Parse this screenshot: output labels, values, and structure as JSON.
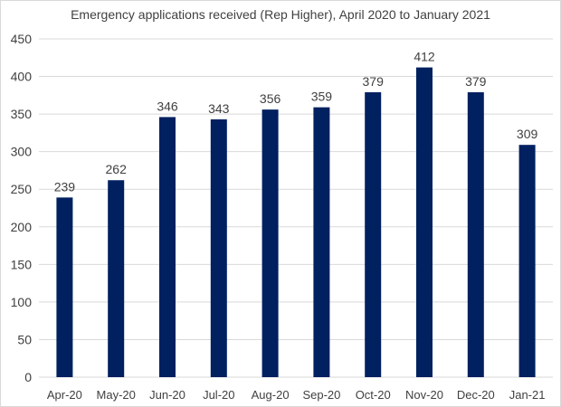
{
  "chart_data": {
    "type": "bar",
    "title": "Emergency applications received (Rep Higher), April 2020 to January 2021",
    "categories": [
      "Apr-20",
      "May-20",
      "Jun-20",
      "Jul-20",
      "Aug-20",
      "Sep-20",
      "Oct-20",
      "Nov-20",
      "Dec-20",
      "Jan-21"
    ],
    "values": [
      239,
      262,
      346,
      343,
      356,
      359,
      379,
      412,
      379,
      309
    ],
    "ylim": [
      0,
      450
    ],
    "yticks": [
      0,
      50,
      100,
      150,
      200,
      250,
      300,
      350,
      400,
      450
    ],
    "grid": true,
    "data_labels": true,
    "bar_color": "#002060",
    "grid_color": "#d9d9d9",
    "text_color": "#404040"
  }
}
